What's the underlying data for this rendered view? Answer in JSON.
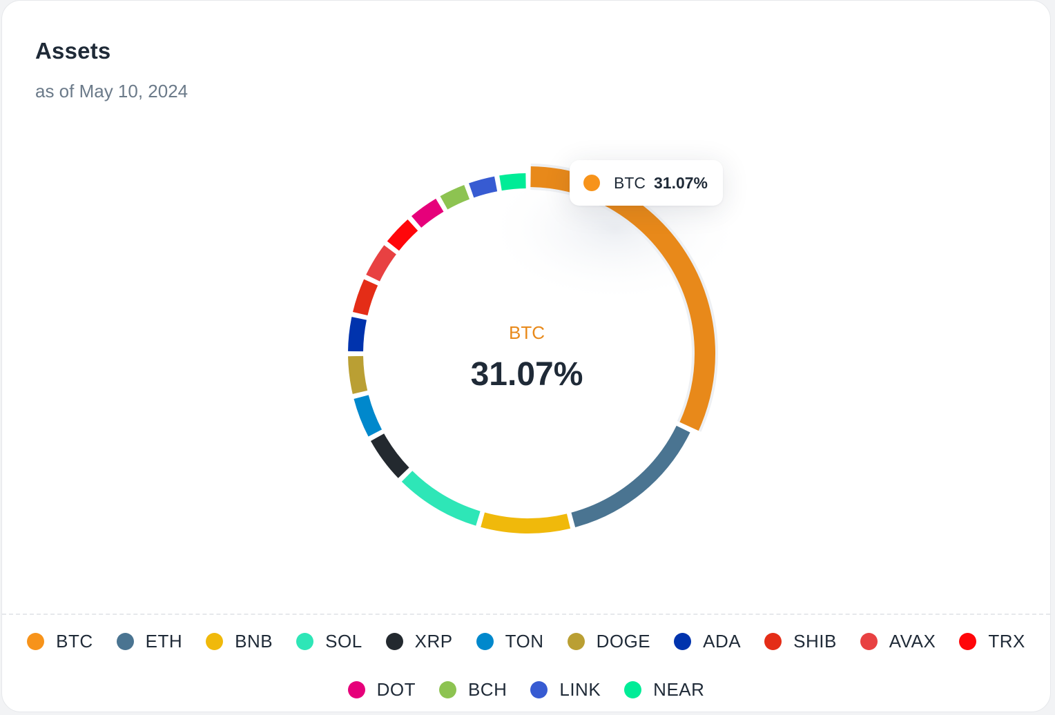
{
  "header": {
    "title": "Assets",
    "subtitle": "as of May 10, 2024"
  },
  "center": {
    "label": "BTC",
    "value": "31.07%",
    "label_color": "#e8891a"
  },
  "tooltip": {
    "label": "BTC",
    "value": "31.07%",
    "color": "#f7931a"
  },
  "chart_data": {
    "type": "pie",
    "variant": "donut",
    "highlighted": "BTC",
    "series": [
      {
        "name": "BTC",
        "value": 31.07,
        "color": "#e8891a"
      },
      {
        "name": "ETH",
        "value": 13.6,
        "color": "#4a7491"
      },
      {
        "name": "BNB",
        "value": 8.2,
        "color": "#f0b90b"
      },
      {
        "name": "SOL",
        "value": 7.9,
        "color": "#2ee6b7"
      },
      {
        "name": "XRP",
        "value": 4.4,
        "color": "#23292f"
      },
      {
        "name": "TON",
        "value": 3.9,
        "color": "#0088cc"
      },
      {
        "name": "DOGE",
        "value": 3.7,
        "color": "#ba9f33"
      },
      {
        "name": "ADA",
        "value": 3.4,
        "color": "#0033ad"
      },
      {
        "name": "SHIB",
        "value": 3.4,
        "color": "#e42d17"
      },
      {
        "name": "AVAX",
        "value": 3.4,
        "color": "#e84142"
      },
      {
        "name": "TRX",
        "value": 3.0,
        "color": "#ff060a"
      },
      {
        "name": "DOT",
        "value": 3.0,
        "color": "#e6007a"
      },
      {
        "name": "BCH",
        "value": 2.7,
        "color": "#8dc351"
      },
      {
        "name": "LINK",
        "value": 2.7,
        "color": "#375bd2"
      },
      {
        "name": "NEAR",
        "value": 2.7,
        "color": "#00ec97"
      }
    ]
  },
  "legend": {
    "row1": [
      {
        "label": "BTC",
        "color": "#f7931a"
      },
      {
        "label": "ETH",
        "color": "#4a7491"
      },
      {
        "label": "BNB",
        "color": "#f0b90b"
      },
      {
        "label": "SOL",
        "color": "#2ee6b7"
      },
      {
        "label": "XRP",
        "color": "#23292f"
      },
      {
        "label": "TON",
        "color": "#0088cc"
      },
      {
        "label": "DOGE",
        "color": "#ba9f33"
      },
      {
        "label": "ADA",
        "color": "#0033ad"
      },
      {
        "label": "SHIB",
        "color": "#e42d17"
      },
      {
        "label": "AVAX",
        "color": "#e84142"
      },
      {
        "label": "TRX",
        "color": "#ff060a"
      }
    ],
    "row2": [
      {
        "label": "DOT",
        "color": "#e6007a"
      },
      {
        "label": "BCH",
        "color": "#8dc351"
      },
      {
        "label": "LINK",
        "color": "#375bd2"
      },
      {
        "label": "NEAR",
        "color": "#00ec97"
      }
    ]
  }
}
